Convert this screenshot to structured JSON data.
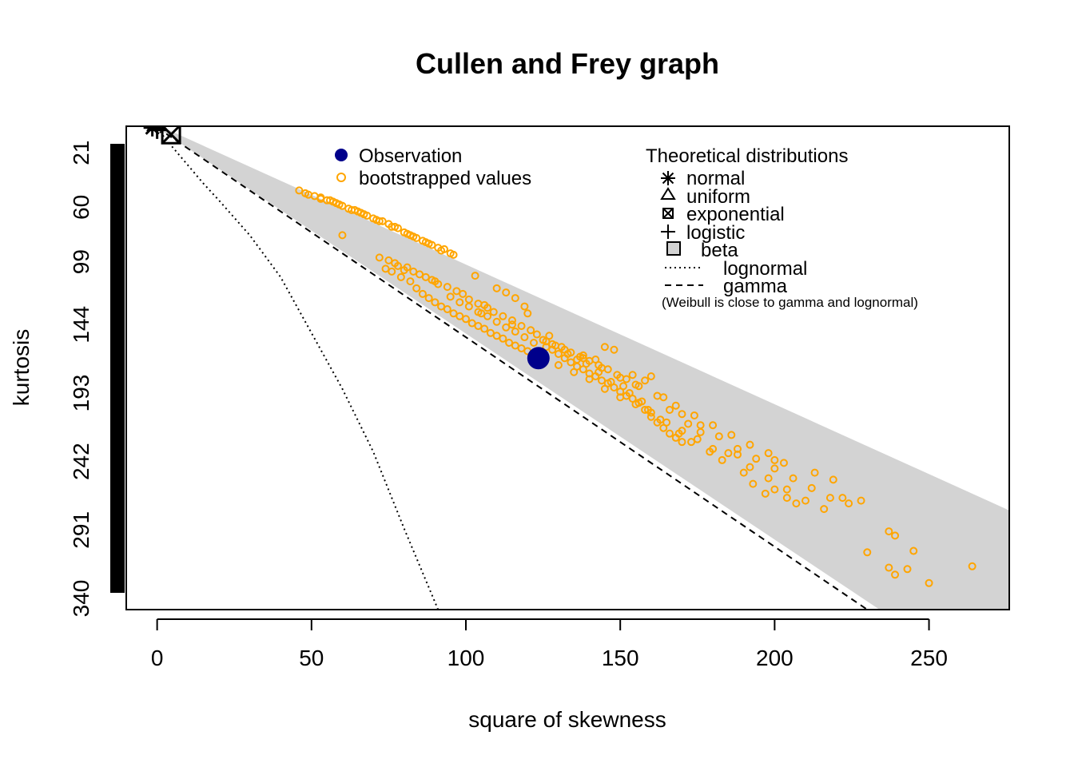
{
  "chart_data": {
    "type": "scatter",
    "title": "Cullen and Frey graph",
    "xlabel": "square of skewness",
    "ylabel": "kurtosis",
    "xlim": [
      -10,
      276
    ],
    "ylim": [
      348,
      2
    ],
    "y_axis_inverted": true,
    "x_ticks": [
      0,
      50,
      100,
      150,
      200,
      250
    ],
    "y_ticks": [
      21,
      60,
      99,
      144,
      193,
      242,
      291,
      340
    ],
    "grid": false,
    "legend_left": {
      "position": "top-center",
      "entries": [
        {
          "label": "Observation",
          "symbol": "filled-circle",
          "color": "#00008B"
        },
        {
          "label": "bootstrapped values",
          "symbol": "open-circle",
          "color": "#FFA500"
        }
      ]
    },
    "legend_right": {
      "position": "top-right",
      "title": "Theoretical distributions",
      "entries": [
        {
          "label": "normal",
          "symbol": "asterisk"
        },
        {
          "label": "uniform",
          "symbol": "triangle"
        },
        {
          "label": "exponential",
          "symbol": "boxed-x"
        },
        {
          "label": "logistic",
          "symbol": "plus"
        },
        {
          "label": "beta",
          "symbol": "grey-square"
        },
        {
          "label": "lognormal",
          "symbol": "dotted-line"
        },
        {
          "label": "gamma",
          "symbol": "dashed-line"
        }
      ],
      "note": "(Weibull is close to gamma and lognormal)"
    },
    "colors": {
      "observation": "#00008B",
      "bootstrap": "#FFA500",
      "beta_region": "#D3D3D3"
    },
    "observation": {
      "x": 123.5,
      "y": 168
    },
    "theoretical_points": {
      "normal": {
        "x": 0,
        "y": 3
      },
      "uniform": {
        "x": 0,
        "y": 1.8
      },
      "exponential": {
        "x": 4,
        "y": 9
      },
      "logistic": {
        "x": 0,
        "y": 4.2
      }
    },
    "gamma_line": {
      "description": "kurtosis = 3 + 1.5 * skewness^2",
      "x": [
        0,
        234
      ],
      "y": [
        3,
        354
      ]
    },
    "beta_region_upper": {
      "description": "kurtosis = 1 + skewness^2",
      "x": [
        0,
        276
      ],
      "y": [
        1,
        277
      ]
    },
    "lognormal_curve": {
      "x": [
        0,
        2,
        5,
        10,
        15,
        20,
        30,
        40,
        50,
        60,
        70,
        80,
        91
      ],
      "y": [
        3,
        9,
        17,
        30,
        43,
        55,
        80,
        110,
        150,
        190,
        235,
        290,
        348
      ]
    },
    "bootstrap_series": [
      {
        "x": 46,
        "y": 48
      },
      {
        "x": 48,
        "y": 50
      },
      {
        "x": 49,
        "y": 51
      },
      {
        "x": 51,
        "y": 52
      },
      {
        "x": 53,
        "y": 53
      },
      {
        "x": 55,
        "y": 55
      },
      {
        "x": 57,
        "y": 56
      },
      {
        "x": 58,
        "y": 57
      },
      {
        "x": 60,
        "y": 59
      },
      {
        "x": 62,
        "y": 61
      },
      {
        "x": 63,
        "y": 62
      },
      {
        "x": 65,
        "y": 63
      },
      {
        "x": 66,
        "y": 64
      },
      {
        "x": 68,
        "y": 66
      },
      {
        "x": 70,
        "y": 68
      },
      {
        "x": 71,
        "y": 69
      },
      {
        "x": 73,
        "y": 70
      },
      {
        "x": 75,
        "y": 72
      },
      {
        "x": 76,
        "y": 74
      },
      {
        "x": 78,
        "y": 75
      },
      {
        "x": 80,
        "y": 78
      },
      {
        "x": 81,
        "y": 79
      },
      {
        "x": 83,
        "y": 81
      },
      {
        "x": 84,
        "y": 82
      },
      {
        "x": 86,
        "y": 84
      },
      {
        "x": 88,
        "y": 86
      },
      {
        "x": 89,
        "y": 87
      },
      {
        "x": 91,
        "y": 89
      },
      {
        "x": 93,
        "y": 90
      },
      {
        "x": 95,
        "y": 93
      },
      {
        "x": 96,
        "y": 94
      },
      {
        "x": 53,
        "y": 54
      },
      {
        "x": 56,
        "y": 55
      },
      {
        "x": 59,
        "y": 58
      },
      {
        "x": 64,
        "y": 62
      },
      {
        "x": 67,
        "y": 65
      },
      {
        "x": 72,
        "y": 70
      },
      {
        "x": 77,
        "y": 74
      },
      {
        "x": 82,
        "y": 80
      },
      {
        "x": 87,
        "y": 85
      },
      {
        "x": 92,
        "y": 91
      },
      {
        "x": 60,
        "y": 80
      },
      {
        "x": 103,
        "y": 109
      },
      {
        "x": 110,
        "y": 118
      },
      {
        "x": 113,
        "y": 121
      },
      {
        "x": 116,
        "y": 125
      },
      {
        "x": 119,
        "y": 131
      },
      {
        "x": 120,
        "y": 136
      },
      {
        "x": 105,
        "y": 136
      },
      {
        "x": 74,
        "y": 104
      },
      {
        "x": 76,
        "y": 106
      },
      {
        "x": 79,
        "y": 110
      },
      {
        "x": 82,
        "y": 113
      },
      {
        "x": 84,
        "y": 118
      },
      {
        "x": 86,
        "y": 122
      },
      {
        "x": 88,
        "y": 125
      },
      {
        "x": 90,
        "y": 128
      },
      {
        "x": 92,
        "y": 131
      },
      {
        "x": 94,
        "y": 133
      },
      {
        "x": 96,
        "y": 136
      },
      {
        "x": 98,
        "y": 138
      },
      {
        "x": 100,
        "y": 140
      },
      {
        "x": 102,
        "y": 143
      },
      {
        "x": 104,
        "y": 145
      },
      {
        "x": 106,
        "y": 147
      },
      {
        "x": 108,
        "y": 150
      },
      {
        "x": 110,
        "y": 152
      },
      {
        "x": 112,
        "y": 154
      },
      {
        "x": 114,
        "y": 157
      },
      {
        "x": 116,
        "y": 159
      },
      {
        "x": 118,
        "y": 161
      },
      {
        "x": 120,
        "y": 163
      },
      {
        "x": 122,
        "y": 166
      },
      {
        "x": 124,
        "y": 164
      },
      {
        "x": 126,
        "y": 160
      },
      {
        "x": 128,
        "y": 162
      },
      {
        "x": 130,
        "y": 165
      },
      {
        "x": 132,
        "y": 168
      },
      {
        "x": 134,
        "y": 171
      },
      {
        "x": 136,
        "y": 174
      },
      {
        "x": 138,
        "y": 176
      },
      {
        "x": 140,
        "y": 179
      },
      {
        "x": 142,
        "y": 181
      },
      {
        "x": 144,
        "y": 184
      },
      {
        "x": 146,
        "y": 186
      },
      {
        "x": 148,
        "y": 189
      },
      {
        "x": 150,
        "y": 192
      },
      {
        "x": 152,
        "y": 195
      },
      {
        "x": 154,
        "y": 197
      },
      {
        "x": 156,
        "y": 200
      },
      {
        "x": 158,
        "y": 205
      },
      {
        "x": 160,
        "y": 210
      },
      {
        "x": 162,
        "y": 214
      },
      {
        "x": 164,
        "y": 218
      },
      {
        "x": 166,
        "y": 222
      },
      {
        "x": 168,
        "y": 225
      },
      {
        "x": 170,
        "y": 228
      },
      {
        "x": 95,
        "y": 124
      },
      {
        "x": 98,
        "y": 128
      },
      {
        "x": 101,
        "y": 131
      },
      {
        "x": 104,
        "y": 135
      },
      {
        "x": 107,
        "y": 138
      },
      {
        "x": 110,
        "y": 142
      },
      {
        "x": 113,
        "y": 146
      },
      {
        "x": 116,
        "y": 149
      },
      {
        "x": 119,
        "y": 153
      },
      {
        "x": 122,
        "y": 157
      },
      {
        "x": 125,
        "y": 155
      },
      {
        "x": 128,
        "y": 158
      },
      {
        "x": 131,
        "y": 160
      },
      {
        "x": 134,
        "y": 164
      },
      {
        "x": 137,
        "y": 167
      },
      {
        "x": 140,
        "y": 170
      },
      {
        "x": 143,
        "y": 173
      },
      {
        "x": 146,
        "y": 176
      },
      {
        "x": 149,
        "y": 180
      },
      {
        "x": 152,
        "y": 183
      },
      {
        "x": 155,
        "y": 187
      },
      {
        "x": 125,
        "y": 168
      },
      {
        "x": 130,
        "y": 173
      },
      {
        "x": 135,
        "y": 178
      },
      {
        "x": 140,
        "y": 183
      },
      {
        "x": 145,
        "y": 190
      },
      {
        "x": 150,
        "y": 196
      },
      {
        "x": 155,
        "y": 201
      },
      {
        "x": 160,
        "y": 207
      },
      {
        "x": 165,
        "y": 214
      },
      {
        "x": 170,
        "y": 220
      },
      {
        "x": 175,
        "y": 226
      },
      {
        "x": 180,
        "y": 233
      },
      {
        "x": 132,
        "y": 162
      },
      {
        "x": 138,
        "y": 168
      },
      {
        "x": 144,
        "y": 175
      },
      {
        "x": 150,
        "y": 182
      },
      {
        "x": 156,
        "y": 188
      },
      {
        "x": 162,
        "y": 195
      },
      {
        "x": 168,
        "y": 202
      },
      {
        "x": 174,
        "y": 209
      },
      {
        "x": 180,
        "y": 216
      },
      {
        "x": 186,
        "y": 223
      },
      {
        "x": 192,
        "y": 230
      },
      {
        "x": 198,
        "y": 236
      },
      {
        "x": 154,
        "y": 180
      },
      {
        "x": 158,
        "y": 184
      },
      {
        "x": 160,
        "y": 181
      },
      {
        "x": 164,
        "y": 196
      },
      {
        "x": 170,
        "y": 208
      },
      {
        "x": 176,
        "y": 216
      },
      {
        "x": 182,
        "y": 224
      },
      {
        "x": 188,
        "y": 233
      },
      {
        "x": 194,
        "y": 240
      },
      {
        "x": 200,
        "y": 247
      },
      {
        "x": 206,
        "y": 254
      },
      {
        "x": 212,
        "y": 261
      },
      {
        "x": 218,
        "y": 268
      },
      {
        "x": 224,
        "y": 272
      },
      {
        "x": 185,
        "y": 236
      },
      {
        "x": 192,
        "y": 246
      },
      {
        "x": 198,
        "y": 254
      },
      {
        "x": 204,
        "y": 262
      },
      {
        "x": 210,
        "y": 270
      },
      {
        "x": 216,
        "y": 276
      },
      {
        "x": 222,
        "y": 268
      },
      {
        "x": 228,
        "y": 270
      },
      {
        "x": 213,
        "y": 250
      },
      {
        "x": 219,
        "y": 255
      },
      {
        "x": 200,
        "y": 241
      },
      {
        "x": 203,
        "y": 243
      },
      {
        "x": 188,
        "y": 237
      },
      {
        "x": 176,
        "y": 221
      },
      {
        "x": 172,
        "y": 215
      },
      {
        "x": 166,
        "y": 205
      },
      {
        "x": 145,
        "y": 160
      },
      {
        "x": 148,
        "y": 162
      },
      {
        "x": 138,
        "y": 166
      },
      {
        "x": 142,
        "y": 169
      },
      {
        "x": 127,
        "y": 152
      },
      {
        "x": 115,
        "y": 141
      },
      {
        "x": 106,
        "y": 130
      },
      {
        "x": 99,
        "y": 122
      },
      {
        "x": 90,
        "y": 113
      },
      {
        "x": 85,
        "y": 108
      },
      {
        "x": 80,
        "y": 105
      },
      {
        "x": 78,
        "y": 102
      },
      {
        "x": 230,
        "y": 307
      },
      {
        "x": 237,
        "y": 318
      },
      {
        "x": 239,
        "y": 323
      },
      {
        "x": 243,
        "y": 319
      },
      {
        "x": 245,
        "y": 306
      },
      {
        "x": 250,
        "y": 329
      },
      {
        "x": 264,
        "y": 317
      },
      {
        "x": 237,
        "y": 292
      },
      {
        "x": 239,
        "y": 295
      },
      {
        "x": 204,
        "y": 268
      },
      {
        "x": 207,
        "y": 272
      },
      {
        "x": 197,
        "y": 265
      },
      {
        "x": 200,
        "y": 262
      },
      {
        "x": 193,
        "y": 258
      },
      {
        "x": 190,
        "y": 250
      },
      {
        "x": 183,
        "y": 241
      },
      {
        "x": 179,
        "y": 235
      },
      {
        "x": 173,
        "y": 228
      },
      {
        "x": 169,
        "y": 222
      },
      {
        "x": 163,
        "y": 212
      },
      {
        "x": 159,
        "y": 205
      },
      {
        "x": 157,
        "y": 199
      },
      {
        "x": 153,
        "y": 193
      },
      {
        "x": 151,
        "y": 188
      },
      {
        "x": 147,
        "y": 185
      },
      {
        "x": 143,
        "y": 178
      },
      {
        "x": 139,
        "y": 172
      },
      {
        "x": 136,
        "y": 169
      },
      {
        "x": 133,
        "y": 165
      },
      {
        "x": 129,
        "y": 159
      },
      {
        "x": 126,
        "y": 156
      },
      {
        "x": 123,
        "y": 151
      },
      {
        "x": 121,
        "y": 148
      },
      {
        "x": 118,
        "y": 145
      },
      {
        "x": 115,
        "y": 144
      },
      {
        "x": 112,
        "y": 138
      },
      {
        "x": 109,
        "y": 135
      },
      {
        "x": 107,
        "y": 132
      },
      {
        "x": 104,
        "y": 129
      },
      {
        "x": 101,
        "y": 126
      },
      {
        "x": 97,
        "y": 120
      },
      {
        "x": 94,
        "y": 117
      },
      {
        "x": 91,
        "y": 115
      },
      {
        "x": 89,
        "y": 112
      },
      {
        "x": 87,
        "y": 110
      },
      {
        "x": 83,
        "y": 106
      },
      {
        "x": 81,
        "y": 103
      },
      {
        "x": 77,
        "y": 100
      },
      {
        "x": 75,
        "y": 98
      },
      {
        "x": 72,
        "y": 96
      }
    ]
  }
}
